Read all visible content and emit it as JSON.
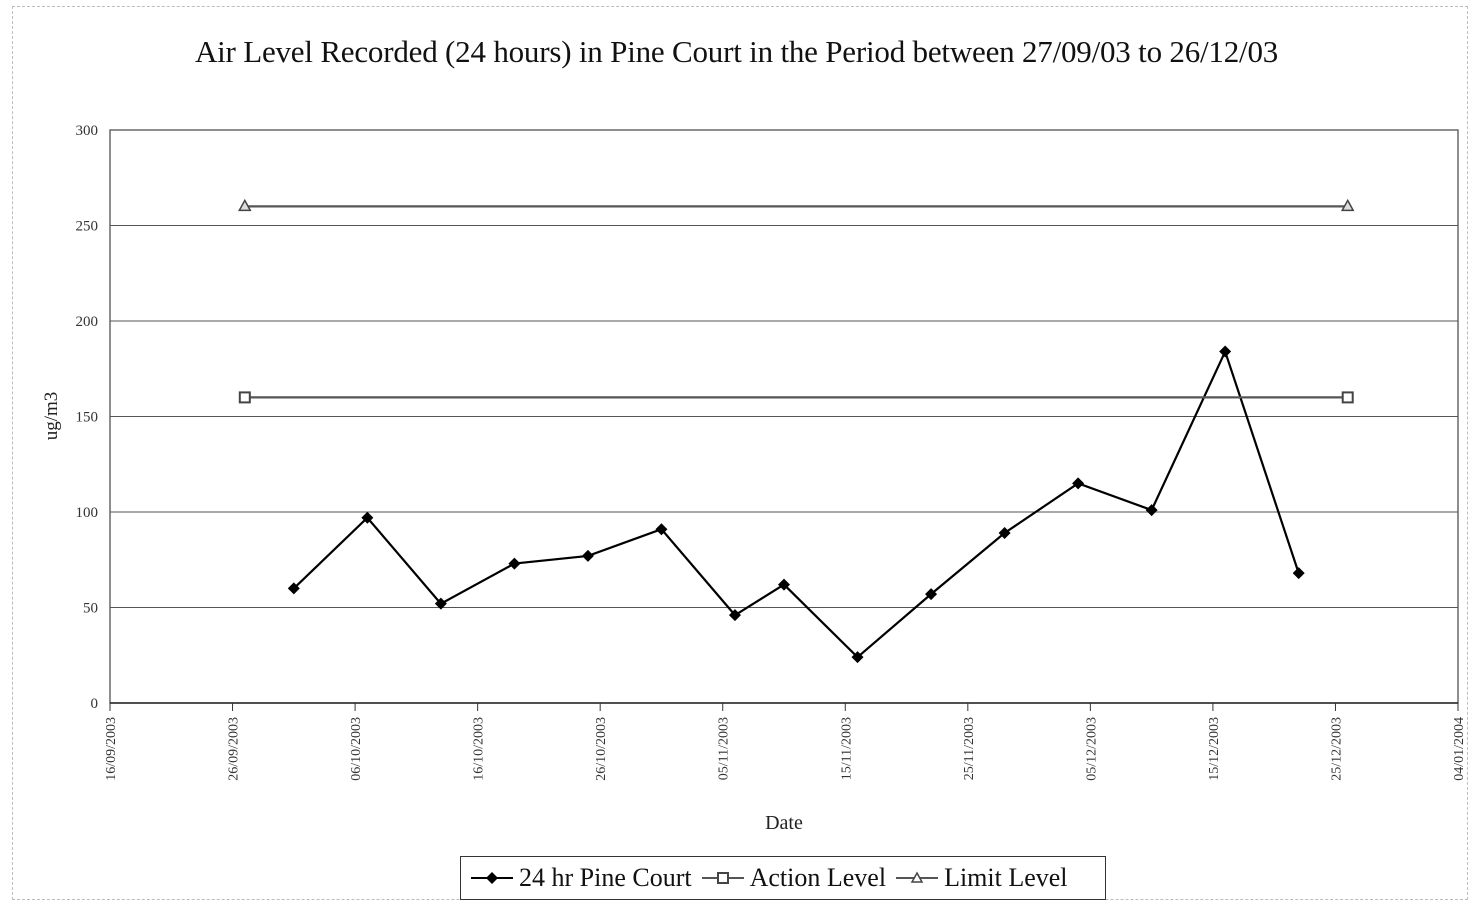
{
  "chart_data": {
    "type": "line",
    "title": "Air Level Recorded (24 hours) in Pine Court in the Period between 27/09/03 to 26/12/03",
    "xlabel": "Date",
    "ylabel": "ug/m3",
    "ylim": [
      0,
      300
    ],
    "yticks": [
      0,
      50,
      100,
      150,
      200,
      250,
      300
    ],
    "xlim": [
      "16/09/2003",
      "04/01/2004"
    ],
    "xticks": [
      "16/09/2003",
      "26/09/2003",
      "06/10/2003",
      "16/10/2003",
      "26/10/2003",
      "05/11/2003",
      "15/11/2003",
      "25/11/2003",
      "05/12/2003",
      "15/12/2003",
      "25/12/2003",
      "04/01/2004"
    ],
    "grid": true,
    "legend_position": "bottom",
    "series": [
      {
        "name": "24 hr Pine Court",
        "color": "#000000",
        "marker": "diamond",
        "points": [
          {
            "x": "01/10/2003",
            "y": 60
          },
          {
            "x": "07/10/2003",
            "y": 97
          },
          {
            "x": "13/10/2003",
            "y": 52
          },
          {
            "x": "19/10/2003",
            "y": 73
          },
          {
            "x": "25/10/2003",
            "y": 77
          },
          {
            "x": "31/10/2003",
            "y": 91
          },
          {
            "x": "06/11/2003",
            "y": 46
          },
          {
            "x": "10/11/2003",
            "y": 62
          },
          {
            "x": "16/11/2003",
            "y": 24
          },
          {
            "x": "22/11/2003",
            "y": 57
          },
          {
            "x": "28/11/2003",
            "y": 89
          },
          {
            "x": "04/12/2003",
            "y": 115
          },
          {
            "x": "10/12/2003",
            "y": 101
          },
          {
            "x": "16/12/2003",
            "y": 184
          },
          {
            "x": "22/12/2003",
            "y": 68
          }
        ]
      },
      {
        "name": "Action Level",
        "color": "#555555",
        "marker": "square",
        "points": [
          {
            "x": "27/09/2003",
            "y": 160
          },
          {
            "x": "26/12/2003",
            "y": 160
          }
        ]
      },
      {
        "name": "Limit Level",
        "color": "#555555",
        "marker": "triangle",
        "points": [
          {
            "x": "27/09/2003",
            "y": 260
          },
          {
            "x": "26/12/2003",
            "y": 260
          }
        ]
      }
    ]
  }
}
